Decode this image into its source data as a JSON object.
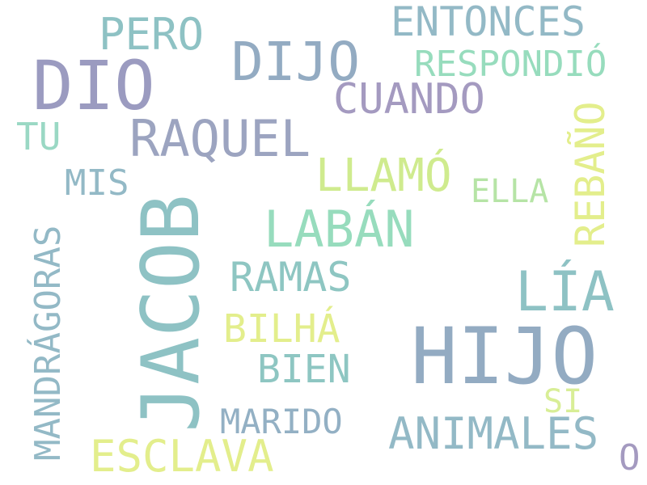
{
  "colors": {
    "background": "#ffffff",
    "lavender": "#9b9bc0",
    "slate": "#93abc2",
    "teal": "#8ec2c4",
    "mint": "#97dcbd",
    "lime": "#cfeb8e",
    "yellow": "#e3ee8c"
  },
  "words": {
    "jacob": "JACOB",
    "hijo": "HIJO",
    "dio": "DIO",
    "dijo": "DIJO",
    "raquel": "RAQUEL",
    "laban": "LABÁN",
    "lia": "LÍA",
    "entonces": "ENTONCES",
    "pero": "PERO",
    "respondio": "RESPONDIÓ",
    "cuando": "CUANDO",
    "tu": "TU",
    "llamo": "LLAMÓ",
    "mis": "MIS",
    "ella": "ELLA",
    "rebano": "REBAÑO",
    "mandragoras": "MANDRÁGORAS",
    "ramas": "RAMAS",
    "bilha": "BILHÁ",
    "bien": "BIEN",
    "marido": "MARIDO",
    "animales": "ANIMALES",
    "si": "SI",
    "esclava": "ESCLAVA",
    "o": "O"
  }
}
